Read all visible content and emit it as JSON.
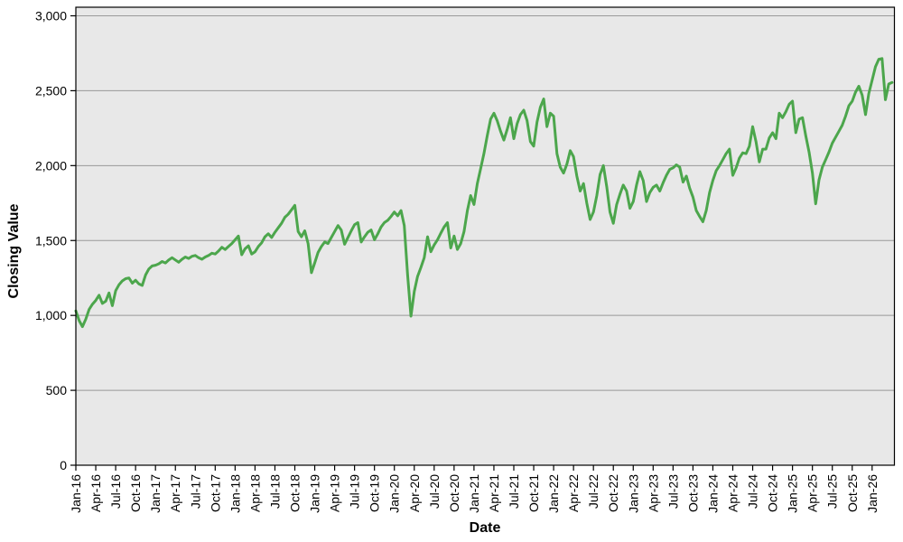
{
  "chart_data": {
    "type": "line",
    "title": "",
    "xlabel": "Date",
    "ylabel": "Closing Value",
    "legend": "none",
    "grid": "horizontal",
    "plot_bg": "#e8e8e8",
    "grid_color": "#999999",
    "axis_color": "#000000",
    "ylim": [
      0,
      3000
    ],
    "x_range_years": [
      2016.0,
      2026.28
    ],
    "y_ticks": [
      0,
      500,
      1000,
      1500,
      2000,
      2500,
      3000
    ],
    "y_tick_labels": [
      "0",
      "500",
      "1,000",
      "1,500",
      "2,000",
      "2,500",
      "3,000"
    ],
    "x_tick_positions_years": [
      2016.0,
      2016.25,
      2016.5,
      2016.75,
      2017.0,
      2017.25,
      2017.5,
      2017.75,
      2018.0,
      2018.25,
      2018.5,
      2018.75,
      2019.0,
      2019.25,
      2019.5,
      2019.75,
      2020.0,
      2020.25,
      2020.5,
      2020.75,
      2021.0,
      2021.25,
      2021.5,
      2021.75,
      2022.0,
      2022.25,
      2022.5,
      2022.75,
      2023.0,
      2023.25,
      2023.5,
      2023.75,
      2024.0,
      2024.25,
      2024.5,
      2024.75,
      2025.0,
      2025.25,
      2025.5,
      2025.75,
      2026.0
    ],
    "x_tick_labels": [
      "Jan-16",
      "Apr-16",
      "Jul-16",
      "Oct-16",
      "Jan-17",
      "Apr-17",
      "Jul-17",
      "Oct-17",
      "Jan-18",
      "Apr-18",
      "Jul-18",
      "Oct-18",
      "Jan-19",
      "Apr-19",
      "Jul-19",
      "Oct-19",
      "Jan-20",
      "Apr-20",
      "Jul-20",
      "Oct-20",
      "Jan-21",
      "Apr-21",
      "Jul-21",
      "Oct-21",
      "Jan-22",
      "Apr-22",
      "Jul-22",
      "Oct-22",
      "Jan-23",
      "Apr-23",
      "Jul-23",
      "Oct-23",
      "Jan-24",
      "Apr-24",
      "Jul-24",
      "Oct-24",
      "Jan-25",
      "Apr-25",
      "Jul-25",
      "Oct-25",
      "Jan-26"
    ],
    "series": [
      {
        "name": "Closing Value",
        "color": "#4CA64C",
        "line_width": 3,
        "x_start_year": 2016.0,
        "x_step_years": 0.0416667,
        "values": [
          1030,
          965,
          925,
          975,
          1040,
          1075,
          1100,
          1135,
          1080,
          1095,
          1150,
          1065,
          1165,
          1205,
          1230,
          1245,
          1250,
          1215,
          1235,
          1210,
          1200,
          1270,
          1310,
          1330,
          1335,
          1345,
          1360,
          1350,
          1370,
          1385,
          1370,
          1355,
          1375,
          1390,
          1380,
          1395,
          1400,
          1385,
          1375,
          1390,
          1400,
          1415,
          1410,
          1430,
          1455,
          1440,
          1460,
          1480,
          1505,
          1530,
          1405,
          1445,
          1465,
          1410,
          1425,
          1460,
          1485,
          1525,
          1545,
          1520,
          1555,
          1585,
          1615,
          1655,
          1675,
          1705,
          1735,
          1560,
          1525,
          1565,
          1480,
          1285,
          1350,
          1420,
          1460,
          1490,
          1480,
          1520,
          1560,
          1600,
          1570,
          1475,
          1520,
          1565,
          1605,
          1620,
          1490,
          1525,
          1555,
          1570,
          1505,
          1545,
          1590,
          1620,
          1635,
          1660,
          1690,
          1665,
          1700,
          1600,
          1270,
          995,
          1160,
          1260,
          1320,
          1385,
          1525,
          1425,
          1470,
          1505,
          1550,
          1590,
          1620,
          1450,
          1530,
          1440,
          1480,
          1560,
          1700,
          1800,
          1740,
          1880,
          1980,
          2080,
          2200,
          2310,
          2350,
          2300,
          2230,
          2170,
          2240,
          2320,
          2180,
          2280,
          2340,
          2370,
          2300,
          2160,
          2130,
          2290,
          2390,
          2445,
          2260,
          2350,
          2330,
          2080,
          1990,
          1950,
          2010,
          2100,
          2060,
          1930,
          1830,
          1880,
          1750,
          1640,
          1690,
          1800,
          1940,
          2000,
          1860,
          1690,
          1615,
          1740,
          1810,
          1870,
          1830,
          1715,
          1760,
          1870,
          1960,
          1900,
          1760,
          1820,
          1855,
          1870,
          1830,
          1885,
          1935,
          1975,
          1985,
          2005,
          1990,
          1890,
          1930,
          1850,
          1790,
          1700,
          1660,
          1625,
          1700,
          1820,
          1900,
          1965,
          2000,
          2040,
          2080,
          2110,
          1935,
          1985,
          2050,
          2085,
          2080,
          2130,
          2260,
          2160,
          2025,
          2110,
          2110,
          2185,
          2220,
          2180,
          2350,
          2320,
          2360,
          2410,
          2430,
          2220,
          2310,
          2320,
          2200,
          2090,
          1950,
          1745,
          1905,
          1990,
          2040,
          2090,
          2150,
          2190,
          2230,
          2270,
          2330,
          2400,
          2430,
          2490,
          2530,
          2470,
          2340,
          2480,
          2570,
          2660,
          2710,
          2715,
          2440,
          2545,
          2555
        ]
      }
    ]
  }
}
